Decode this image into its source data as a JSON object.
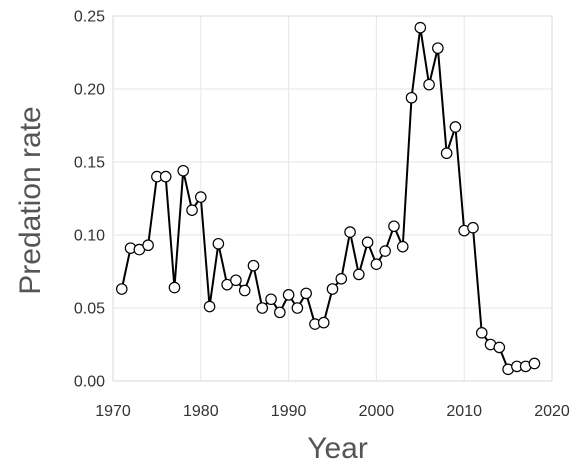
{
  "chart_data": {
    "type": "line",
    "xlabel": "Year",
    "ylabel": "Predation rate",
    "xlim": [
      1970,
      2020
    ],
    "ylim": [
      0,
      0.25
    ],
    "xticks": [
      "1970",
      "1980",
      "1990",
      "2000",
      "2010",
      "2020"
    ],
    "yticks": [
      "0.00",
      "0.05",
      "0.10",
      "0.15",
      "0.20",
      "0.25"
    ],
    "grid": true,
    "marker": "open-circle",
    "colors": {
      "line": "#000000",
      "marker_fill": "#ffffff",
      "grid": "#e6e6e6"
    },
    "x": [
      1971,
      1972,
      1973,
      1974,
      1975,
      1976,
      1977,
      1978,
      1979,
      1980,
      1981,
      1982,
      1983,
      1984,
      1985,
      1986,
      1987,
      1988,
      1989,
      1990,
      1991,
      1992,
      1993,
      1994,
      1995,
      1996,
      1997,
      1998,
      1999,
      2000,
      2001,
      2002,
      2003,
      2004,
      2005,
      2006,
      2007,
      2008,
      2009,
      2010,
      2011,
      2012,
      2013,
      2014,
      2015,
      2016,
      2017,
      2018
    ],
    "y": [
      0.063,
      0.091,
      0.09,
      0.093,
      0.14,
      0.14,
      0.064,
      0.144,
      0.117,
      0.126,
      0.051,
      0.094,
      0.066,
      0.069,
      0.062,
      0.079,
      0.05,
      0.056,
      0.047,
      0.059,
      0.05,
      0.06,
      0.039,
      0.04,
      0.063,
      0.07,
      0.102,
      0.073,
      0.095,
      0.08,
      0.089,
      0.106,
      0.092,
      0.194,
      0.242,
      0.203,
      0.228,
      0.156,
      0.174,
      0.103,
      0.105,
      0.033,
      0.025,
      0.023,
      0.008,
      0.01,
      0.01,
      0.012
    ]
  }
}
